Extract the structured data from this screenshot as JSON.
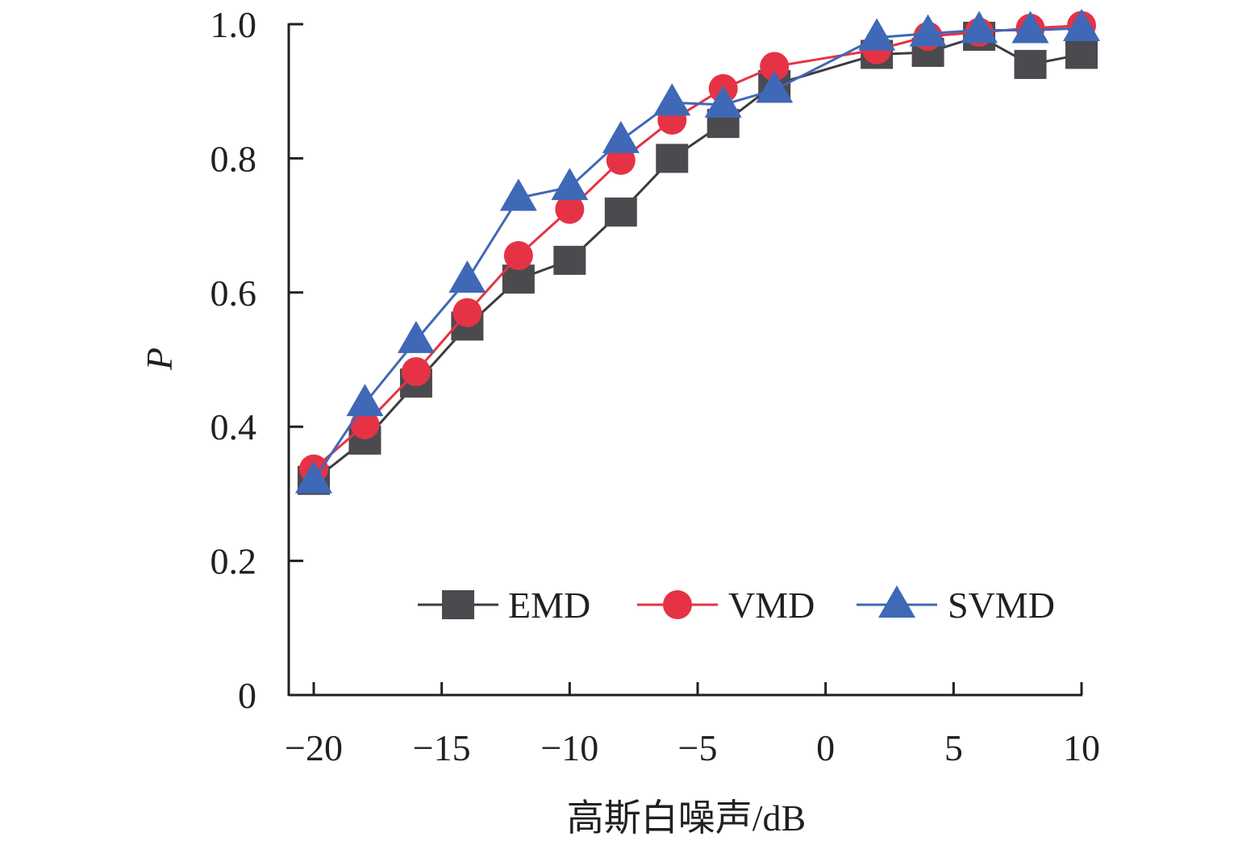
{
  "chart_data": {
    "type": "line",
    "title": "",
    "xlabel": "高斯白噪声/dB",
    "ylabel": "P",
    "xlim": [
      -21,
      10
    ],
    "ylim": [
      0,
      1.0
    ],
    "xticks": [
      -20,
      -15,
      -10,
      -5,
      0,
      5,
      10
    ],
    "xtick_labels": [
      "−20",
      "−15",
      "−10",
      "−5",
      "0",
      "5",
      "10"
    ],
    "yticks": [
      0,
      0.2,
      0.4,
      0.6,
      0.8,
      1.0
    ],
    "ytick_labels": [
      "0",
      "0.2",
      "0.4",
      "0.6",
      "0.8",
      "1.0"
    ],
    "grid": false,
    "legend_position": "lower-right",
    "x": [
      -20,
      -18,
      -16,
      -14,
      -12,
      -10,
      -8,
      -6,
      -4,
      -2,
      2,
      4,
      6,
      8,
      10
    ],
    "series": [
      {
        "name": "EMD",
        "marker": "square",
        "color": "#4a4a4f",
        "line_color": "#3c3c3c",
        "values": [
          0.32,
          0.38,
          0.465,
          0.55,
          0.62,
          0.648,
          0.72,
          0.8,
          0.852,
          0.91,
          0.955,
          0.958,
          0.982,
          0.94,
          0.955
        ]
      },
      {
        "name": "VMD",
        "marker": "circle",
        "color": "#e53345",
        "line_color": "#e53345",
        "values": [
          0.337,
          0.403,
          0.482,
          0.57,
          0.655,
          0.724,
          0.797,
          0.857,
          0.904,
          0.937,
          0.962,
          0.982,
          0.988,
          0.994,
          0.998
        ]
      },
      {
        "name": "SVMD",
        "marker": "triangle",
        "color": "#3f68b6",
        "line_color": "#3f68b6",
        "values": [
          0.32,
          0.435,
          0.529,
          0.619,
          0.741,
          0.757,
          0.827,
          0.883,
          0.88,
          0.902,
          0.98,
          0.986,
          0.991,
          0.991,
          0.994
        ]
      }
    ]
  }
}
